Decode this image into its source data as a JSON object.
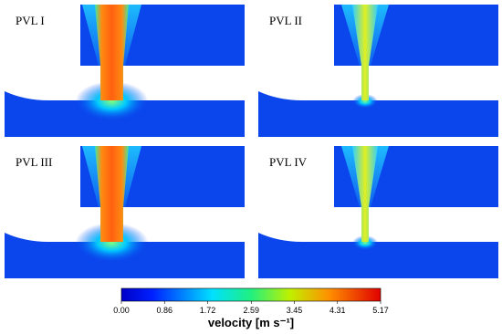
{
  "panels": [
    {
      "label": "PVL I"
    },
    {
      "label": "PVL II"
    },
    {
      "label": "PVL III"
    },
    {
      "label": "PVL IV"
    }
  ],
  "colorbar": {
    "title": "velocity [m s⁻¹]",
    "lim": [
      0,
      5.17
    ],
    "ticks": [
      {
        "value": 0,
        "label": "0.00"
      },
      {
        "value": 0.86,
        "label": "0.86"
      },
      {
        "value": 1.72,
        "label": "1.72"
      },
      {
        "value": 2.59,
        "label": "2.59"
      },
      {
        "value": 3.45,
        "label": "3.45"
      },
      {
        "value": 4.31,
        "label": "4.31"
      },
      {
        "value": 5.17,
        "label": "5.17"
      }
    ]
  }
}
